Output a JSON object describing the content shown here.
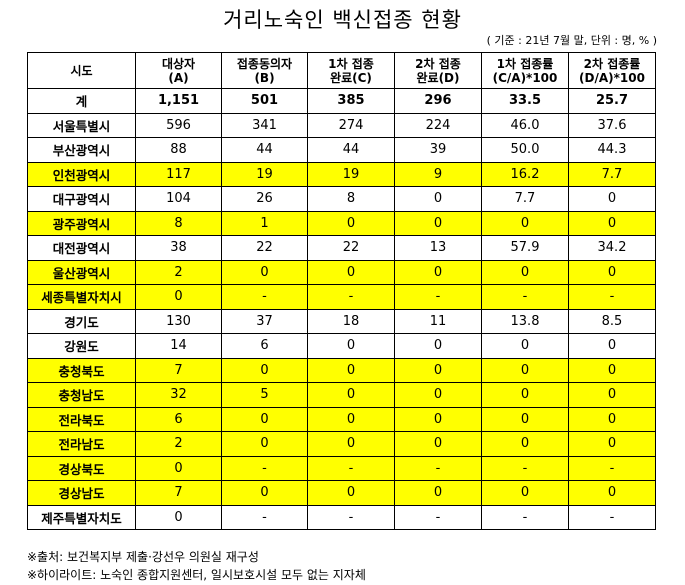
{
  "title": "거리노숙인 백신접종 현황",
  "note": "( 기준 : 21년 7월 말, 단위 : 명, % )",
  "headers": [
    {
      "line1": "시도",
      "line2": ""
    },
    {
      "line1": "대상자",
      "line2": "(A)"
    },
    {
      "line1": "접종동의자",
      "line2": "(B)"
    },
    {
      "line1": "1차 접종",
      "line2": "완료(C)"
    },
    {
      "line1": "2차 접종",
      "line2": "완료(D)"
    },
    {
      "line1": "1차 접종률",
      "line2": "(C/A)*100"
    },
    {
      "line1": "2차 접종률",
      "line2": "(D/A)*100"
    }
  ],
  "rows": [
    {
      "name": "계",
      "highlight": false,
      "total": true,
      "values": [
        "1,151",
        "501",
        "385",
        "296",
        "33.5",
        "25.7"
      ]
    },
    {
      "name": "서울특별시",
      "highlight": false,
      "values": [
        "596",
        "341",
        "274",
        "224",
        "46.0",
        "37.6"
      ]
    },
    {
      "name": "부산광역시",
      "highlight": false,
      "values": [
        "88",
        "44",
        "44",
        "39",
        "50.0",
        "44.3"
      ]
    },
    {
      "name": "인천광역시",
      "highlight": true,
      "values": [
        "117",
        "19",
        "19",
        "9",
        "16.2",
        "7.7"
      ]
    },
    {
      "name": "대구광역시",
      "highlight": false,
      "values": [
        "104",
        "26",
        "8",
        "0",
        "7.7",
        "0"
      ]
    },
    {
      "name": "광주광역시",
      "highlight": true,
      "values": [
        "8",
        "1",
        "0",
        "0",
        "0",
        "0"
      ]
    },
    {
      "name": "대전광역시",
      "highlight": false,
      "values": [
        "38",
        "22",
        "22",
        "13",
        "57.9",
        "34.2"
      ]
    },
    {
      "name": "울산광역시",
      "highlight": true,
      "values": [
        "2",
        "0",
        "0",
        "0",
        "0",
        "0"
      ]
    },
    {
      "name": "세종특별자치시",
      "highlight": true,
      "values": [
        "0",
        "-",
        "-",
        "-",
        "-",
        "-"
      ]
    },
    {
      "name": "경기도",
      "highlight": false,
      "values": [
        "130",
        "37",
        "18",
        "11",
        "13.8",
        "8.5"
      ]
    },
    {
      "name": "강원도",
      "highlight": false,
      "values": [
        "14",
        "6",
        "0",
        "0",
        "0",
        "0"
      ]
    },
    {
      "name": "충청북도",
      "highlight": true,
      "values": [
        "7",
        "0",
        "0",
        "0",
        "0",
        "0"
      ]
    },
    {
      "name": "충청남도",
      "highlight": true,
      "values": [
        "32",
        "5",
        "0",
        "0",
        "0",
        "0"
      ]
    },
    {
      "name": "전라북도",
      "highlight": true,
      "values": [
        "6",
        "0",
        "0",
        "0",
        "0",
        "0"
      ]
    },
    {
      "name": "전라남도",
      "highlight": true,
      "values": [
        "2",
        "0",
        "0",
        "0",
        "0",
        "0"
      ]
    },
    {
      "name": "경상북도",
      "highlight": true,
      "values": [
        "0",
        "-",
        "-",
        "-",
        "-",
        "-"
      ]
    },
    {
      "name": "경상남도",
      "highlight": true,
      "values": [
        "7",
        "0",
        "0",
        "0",
        "0",
        "0"
      ]
    },
    {
      "name": "제주특별자치도",
      "highlight": false,
      "values": [
        "0",
        "-",
        "-",
        "-",
        "-",
        "-"
      ]
    }
  ],
  "footnotes": [
    "※출처: 보건복지부 제출·강선우 의원실 재구성",
    "※하이라이트: 노숙인 종합지원센터, 일시보호시설 모두 없는 지자체"
  ]
}
